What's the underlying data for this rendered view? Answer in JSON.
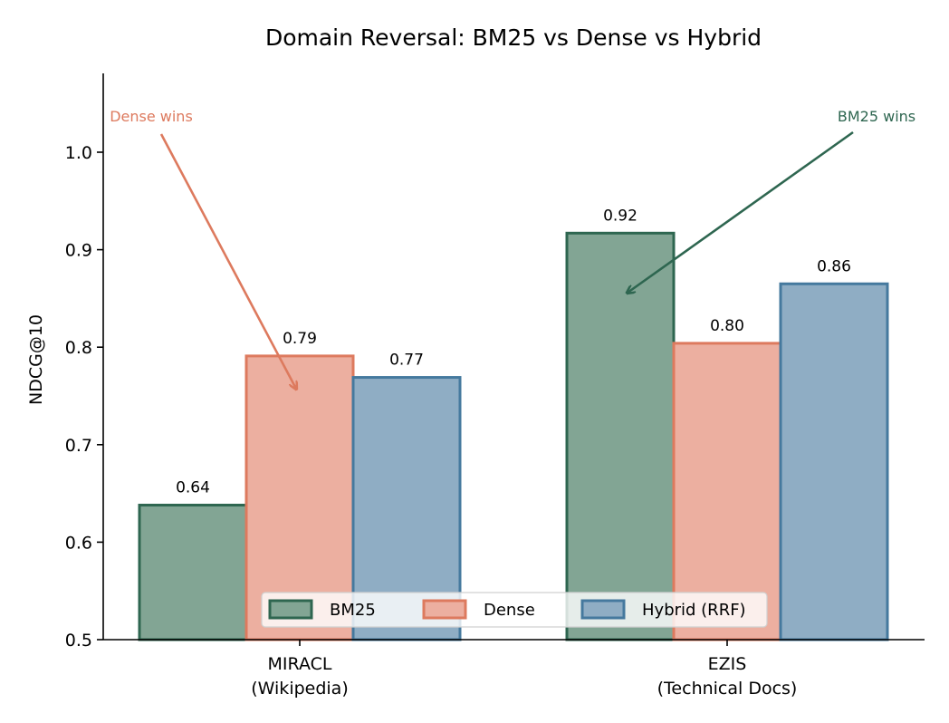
{
  "chart_data": {
    "type": "bar",
    "title": "Domain Reversal: BM25 vs Dense vs Hybrid",
    "ylabel": "NDCG@10",
    "xlabel": "",
    "ylim": [
      0.5,
      1.08
    ],
    "yticks": [
      "0.5",
      "0.6",
      "0.7",
      "0.8",
      "0.9",
      "1.0"
    ],
    "categories": [
      {
        "line1": "MIRACL",
        "line2": "(Wikipedia)"
      },
      {
        "line1": "EZIS",
        "line2": "(Technical Docs)"
      }
    ],
    "series": [
      {
        "name": "BM25",
        "values": [
          0.638,
          0.917
        ],
        "labels": [
          "0.64",
          "0.92"
        ],
        "fill": "#82a594",
        "stroke": "#2e6650"
      },
      {
        "name": "Dense",
        "values": [
          0.791,
          0.804
        ],
        "labels": [
          "0.79",
          "0.80"
        ],
        "fill": "#ecafa0",
        "stroke": "#dd7a5e"
      },
      {
        "name": "Hybrid (RRF)",
        "values": [
          0.769,
          0.865
        ],
        "labels": [
          "0.77",
          "0.86"
        ],
        "fill": "#8fadc4",
        "stroke": "#45799e"
      }
    ],
    "annotations": [
      {
        "text": "Dense wins",
        "color": "#dd7a5e"
      },
      {
        "text": "BM25 wins",
        "color": "#2e6650"
      }
    ],
    "legend_position": "bottom-center",
    "grid": false
  }
}
